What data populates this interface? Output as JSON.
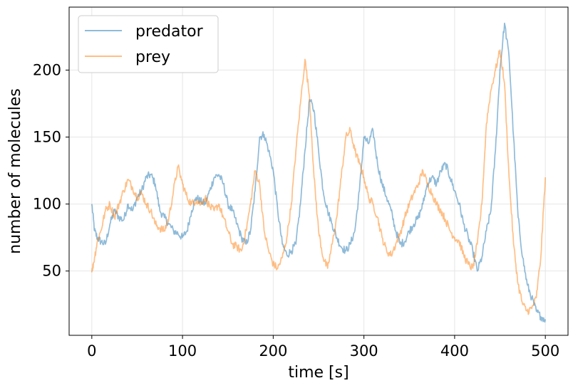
{
  "chart_data": {
    "type": "line",
    "title": "",
    "xlabel": "time [s]",
    "ylabel": "number of molecules",
    "xlim": [
      -25,
      525
    ],
    "ylim": [
      2,
      247
    ],
    "xticks": [
      0,
      100,
      200,
      300,
      400,
      500
    ],
    "yticks": [
      50,
      100,
      150,
      200
    ],
    "grid": true,
    "legend": "top-left",
    "series": [
      {
        "name": "predator",
        "color": "#1f77b4",
        "x": [
          0,
          3,
          6,
          10,
          15,
          20,
          25,
          30,
          35,
          40,
          45,
          50,
          55,
          60,
          65,
          70,
          75,
          80,
          85,
          90,
          95,
          100,
          105,
          110,
          115,
          120,
          125,
          130,
          135,
          140,
          145,
          150,
          155,
          160,
          165,
          170,
          175,
          180,
          185,
          190,
          195,
          200,
          205,
          210,
          215,
          220,
          225,
          230,
          235,
          240,
          245,
          250,
          255,
          260,
          265,
          270,
          275,
          280,
          285,
          290,
          295,
          300,
          305,
          310,
          315,
          320,
          325,
          330,
          335,
          340,
          345,
          350,
          355,
          360,
          365,
          370,
          375,
          380,
          385,
          390,
          395,
          400,
          405,
          410,
          415,
          420,
          425,
          430,
          435,
          440,
          445,
          450,
          455,
          460,
          465,
          470,
          475,
          480,
          485,
          490,
          495,
          500
        ],
        "y": [
          100,
          80,
          75,
          72,
          70,
          85,
          95,
          90,
          88,
          100,
          95,
          105,
          110,
          120,
          122,
          115,
          95,
          90,
          85,
          80,
          78,
          75,
          80,
          95,
          105,
          102,
          100,
          110,
          120,
          122,
          115,
          100,
          95,
          85,
          75,
          70,
          80,
          110,
          150,
          152,
          140,
          125,
          95,
          70,
          62,
          65,
          70,
          100,
          140,
          178,
          170,
          140,
          110,
          95,
          85,
          75,
          68,
          65,
          70,
          80,
          110,
          150,
          145,
          155,
          130,
          115,
          105,
          95,
          80,
          70,
          72,
          80,
          85,
          90,
          100,
          115,
          120,
          115,
          125,
          130,
          120,
          110,
          100,
          85,
          75,
          65,
          50,
          60,
          80,
          95,
          140,
          200,
          235,
          210,
          150,
          90,
          60,
          40,
          30,
          20,
          16,
          14
        ]
      },
      {
        "name": "prey",
        "color": "#ff7f0e",
        "x": [
          0,
          3,
          6,
          10,
          15,
          20,
          25,
          30,
          35,
          40,
          45,
          50,
          55,
          60,
          65,
          70,
          75,
          80,
          85,
          90,
          95,
          100,
          105,
          110,
          115,
          120,
          125,
          130,
          135,
          140,
          145,
          150,
          155,
          160,
          165,
          170,
          175,
          180,
          185,
          190,
          195,
          200,
          205,
          210,
          215,
          220,
          225,
          230,
          235,
          240,
          245,
          250,
          255,
          260,
          265,
          270,
          275,
          280,
          285,
          290,
          295,
          300,
          305,
          310,
          315,
          320,
          325,
          330,
          335,
          340,
          345,
          350,
          355,
          360,
          365,
          370,
          375,
          380,
          385,
          390,
          395,
          400,
          405,
          410,
          415,
          420,
          425,
          430,
          435,
          440,
          445,
          450,
          455,
          460,
          465,
          470,
          475,
          480,
          485,
          490,
          495,
          500
        ],
        "y": [
          49,
          60,
          72,
          80,
          95,
          100,
          90,
          100,
          110,
          118,
          112,
          105,
          108,
          100,
          95,
          85,
          82,
          80,
          90,
          110,
          128,
          115,
          105,
          100,
          103,
          100,
          105,
          98,
          95,
          100,
          90,
          80,
          70,
          68,
          65,
          80,
          100,
          125,
          115,
          80,
          65,
          55,
          52,
          60,
          75,
          100,
          140,
          175,
          208,
          180,
          120,
          80,
          60,
          52,
          70,
          90,
          120,
          150,
          155,
          140,
          130,
          120,
          105,
          100,
          90,
          75,
          65,
          62,
          70,
          78,
          90,
          100,
          108,
          115,
          125,
          115,
          108,
          100,
          95,
          88,
          80,
          75,
          72,
          62,
          55,
          52,
          70,
          100,
          160,
          185,
          200,
          215,
          190,
          120,
          70,
          40,
          25,
          20,
          22,
          30,
          60,
          120
        ]
      }
    ]
  }
}
